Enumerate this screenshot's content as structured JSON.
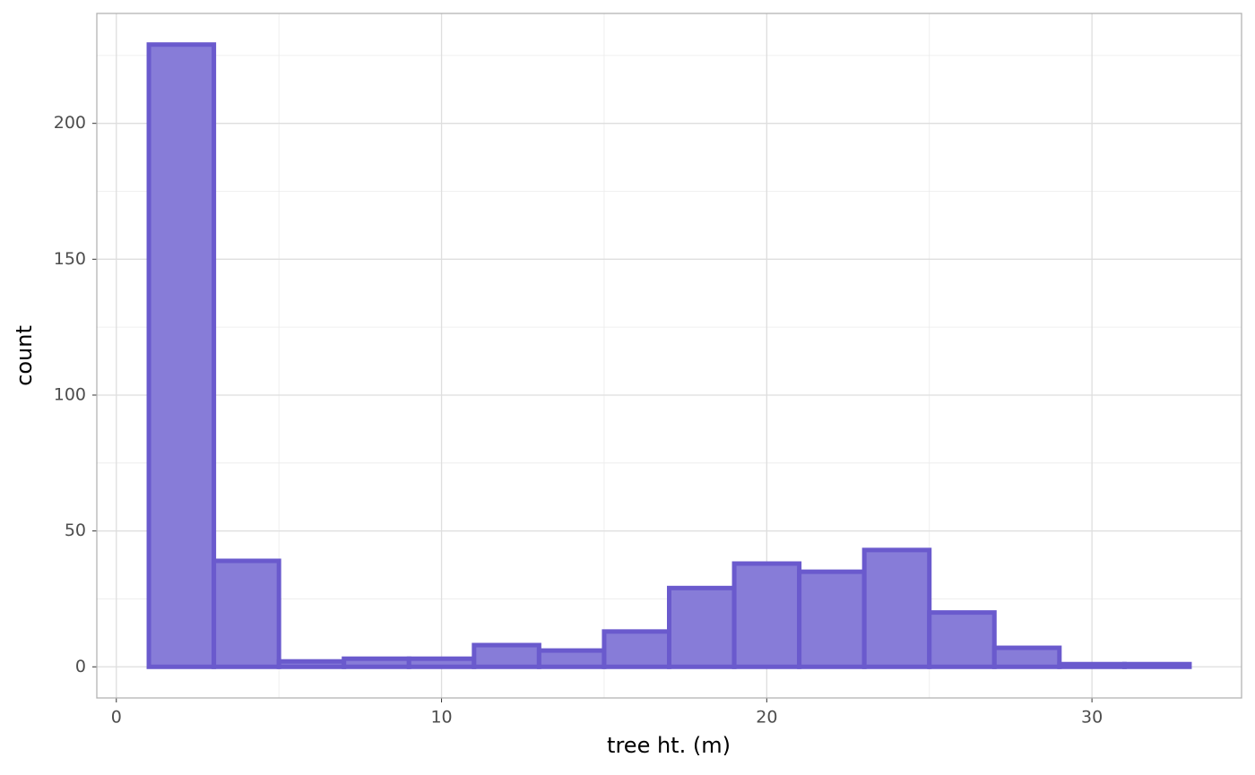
{
  "chart_data": {
    "type": "histogram",
    "x_label": "tree ht. (m)",
    "y_label": "count",
    "bins": [
      1,
      3,
      5,
      7,
      9,
      11,
      13,
      15,
      17,
      19,
      21,
      23,
      25,
      27,
      29,
      31,
      33
    ],
    "counts": [
      229,
      39,
      2,
      3,
      3,
      8,
      6,
      13,
      29,
      38,
      35,
      43,
      20,
      7,
      1,
      1
    ],
    "fill": "#877cd8",
    "edge_color": "#6a5acd",
    "xlim": [
      -0.6,
      34.6
    ],
    "xticks": [
      0,
      10,
      20,
      30
    ],
    "xminor": [
      5,
      15,
      25
    ],
    "ylim": [
      -11.45,
      240.45
    ],
    "yticks": [
      0,
      50,
      100,
      150,
      200
    ],
    "yminor": [
      25,
      75,
      125,
      175,
      225
    ],
    "grid": true
  }
}
